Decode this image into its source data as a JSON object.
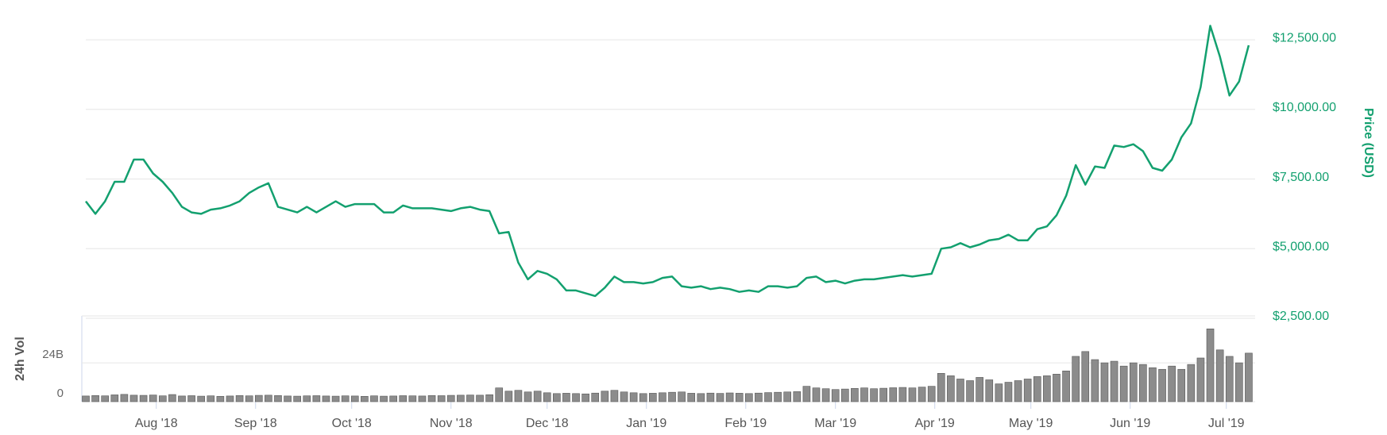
{
  "chart_data": [
    {
      "type": "line",
      "ylabel": "Price (USD)",
      "color": "#13a06f",
      "x": [
        0,
        3,
        6,
        9,
        12,
        15,
        18,
        21,
        24,
        27,
        30,
        33,
        36,
        39,
        42,
        45,
        48,
        51,
        54,
        57,
        60,
        63,
        66,
        69,
        72,
        75,
        78,
        81,
        84,
        87,
        90,
        93,
        96,
        99,
        102,
        105,
        108,
        111,
        114,
        117,
        120,
        123,
        126,
        129,
        132,
        135,
        138,
        141,
        144,
        147,
        150,
        153,
        156,
        159,
        162,
        165,
        168,
        171,
        174,
        177,
        180,
        183,
        186,
        189,
        192,
        195,
        198,
        201,
        204,
        207,
        210,
        213,
        216,
        219,
        222,
        225,
        228,
        231,
        234,
        237,
        240,
        243,
        246,
        249,
        252,
        255,
        258,
        261,
        264,
        267,
        270,
        273,
        276,
        279,
        282,
        285,
        288,
        291,
        294,
        297,
        300,
        303,
        306,
        309,
        312,
        315,
        318,
        321,
        324,
        327,
        330,
        333,
        336,
        339,
        342,
        345,
        348,
        351,
        354,
        357,
        360,
        363
      ],
      "values": [
        6700,
        6250,
        6700,
        7400,
        7400,
        8200,
        8200,
        7700,
        7400,
        7000,
        6500,
        6300,
        6250,
        6400,
        6450,
        6550,
        6700,
        7000,
        7200,
        7350,
        6500,
        6400,
        6300,
        6500,
        6300,
        6500,
        6700,
        6500,
        6600,
        6600,
        6600,
        6300,
        6300,
        6550,
        6450,
        6450,
        6450,
        6400,
        6350,
        6450,
        6500,
        6400,
        6350,
        5550,
        5600,
        4500,
        3900,
        4200,
        4100,
        3900,
        3500,
        3500,
        3400,
        3300,
        3600,
        4000,
        3800,
        3800,
        3750,
        3800,
        3950,
        4000,
        3650,
        3600,
        3650,
        3550,
        3600,
        3550,
        3450,
        3500,
        3450,
        3650,
        3650,
        3600,
        3650,
        3950,
        4000,
        3800,
        3850,
        3750,
        3850,
        3900,
        3900,
        3950,
        4000,
        4050,
        4000,
        4050,
        4100,
        5000,
        5050,
        5200,
        5050,
        5150,
        5300,
        5350,
        5500,
        5300,
        5300,
        5700,
        5800,
        6200,
        6900,
        8000,
        7300,
        7950,
        7900,
        8700,
        8650,
        8750,
        8500,
        7900,
        7800,
        8200,
        9000,
        9500,
        10800,
        13000,
        11900,
        10500,
        11000,
        12300
      ],
      "xlim": [
        0,
        365
      ],
      "ylim": [
        2500,
        13300
      ],
      "yticks": [
        {
          "value": 2500,
          "label": "$2,500.00"
        },
        {
          "value": 5000,
          "label": "$5,000.00"
        },
        {
          "value": 7500,
          "label": "$7,500.00"
        },
        {
          "value": 10000,
          "label": "$10,000.00"
        },
        {
          "value": 12500,
          "label": "$12,500.00"
        }
      ],
      "grid": true
    },
    {
      "type": "bar",
      "ylabel": "24h Vol",
      "color": "#8c8c8c",
      "x": [
        0,
        3,
        6,
        9,
        12,
        15,
        18,
        21,
        24,
        27,
        30,
        33,
        36,
        39,
        42,
        45,
        48,
        51,
        54,
        57,
        60,
        63,
        66,
        69,
        72,
        75,
        78,
        81,
        84,
        87,
        90,
        93,
        96,
        99,
        102,
        105,
        108,
        111,
        114,
        117,
        120,
        123,
        126,
        129,
        132,
        135,
        138,
        141,
        144,
        147,
        150,
        153,
        156,
        159,
        162,
        165,
        168,
        171,
        174,
        177,
        180,
        183,
        186,
        189,
        192,
        195,
        198,
        201,
        204,
        207,
        210,
        213,
        216,
        219,
        222,
        225,
        228,
        231,
        234,
        237,
        240,
        243,
        246,
        249,
        252,
        255,
        258,
        261,
        264,
        267,
        270,
        273,
        276,
        279,
        282,
        285,
        288,
        291,
        294,
        297,
        300,
        303,
        306,
        309,
        312,
        315,
        318,
        321,
        324,
        327,
        330,
        333,
        336,
        339,
        342,
        345,
        348,
        351,
        354,
        357,
        360,
        363
      ],
      "values": [
        3.5,
        3.8,
        3.6,
        4.2,
        4.5,
        4.0,
        3.9,
        4.1,
        3.6,
        4.4,
        3.5,
        3.7,
        3.4,
        3.6,
        3.3,
        3.5,
        3.8,
        3.6,
        3.9,
        4.0,
        3.8,
        3.5,
        3.4,
        3.6,
        3.7,
        3.5,
        3.4,
        3.6,
        3.5,
        3.3,
        3.6,
        3.4,
        3.5,
        3.7,
        3.6,
        3.5,
        3.8,
        3.7,
        3.9,
        4.0,
        4.1,
        4.0,
        4.3,
        8.5,
        6.5,
        7.0,
        6.0,
        6.5,
        5.5,
        5.0,
        5.2,
        5.0,
        4.8,
        5.3,
        6.5,
        7.0,
        6.0,
        5.5,
        5.0,
        5.2,
        5.5,
        5.8,
        6.0,
        5.2,
        5.0,
        5.3,
        5.1,
        5.4,
        5.2,
        5.0,
        5.3,
        5.6,
        5.8,
        6.0,
        6.2,
        9.5,
        8.5,
        8.0,
        7.5,
        7.8,
        8.2,
        8.5,
        8.0,
        8.3,
        8.6,
        8.8,
        8.5,
        9.0,
        9.5,
        17.5,
        16.0,
        14.0,
        13.0,
        15.0,
        13.5,
        11.0,
        12.0,
        13.0,
        14.0,
        15.5,
        16.0,
        17.0,
        19.0,
        28.0,
        31.0,
        26.0,
        24.0,
        25.0,
        22.0,
        24.0,
        23.0,
        21.0,
        20.0,
        22.0,
        20.0,
        23.0,
        27.0,
        45.0,
        32.0,
        28.0,
        24.0,
        30.0
      ],
      "xlim": [
        0,
        365
      ],
      "ylim": [
        0,
        53
      ],
      "yticks": [
        0,
        {
          "value": 24,
          "label": "24B"
        }
      ],
      "xticks": [
        {
          "value": 22,
          "label": "Aug '18"
        },
        {
          "value": 53,
          "label": "Sep '18"
        },
        {
          "value": 83,
          "label": "Oct '18"
        },
        {
          "value": 114,
          "label": "Nov '18"
        },
        {
          "value": 144,
          "label": "Dec '18"
        },
        {
          "value": 175,
          "label": "Jan '19"
        },
        {
          "value": 206,
          "label": "Feb '19"
        },
        {
          "value": 234,
          "label": "Mar '19"
        },
        {
          "value": 265,
          "label": "Apr '19"
        },
        {
          "value": 295,
          "label": "May '19"
        },
        {
          "value": 326,
          "label": "Jun '19"
        },
        {
          "value": 356,
          "label": "Jul '19"
        }
      ],
      "grid": true
    }
  ]
}
